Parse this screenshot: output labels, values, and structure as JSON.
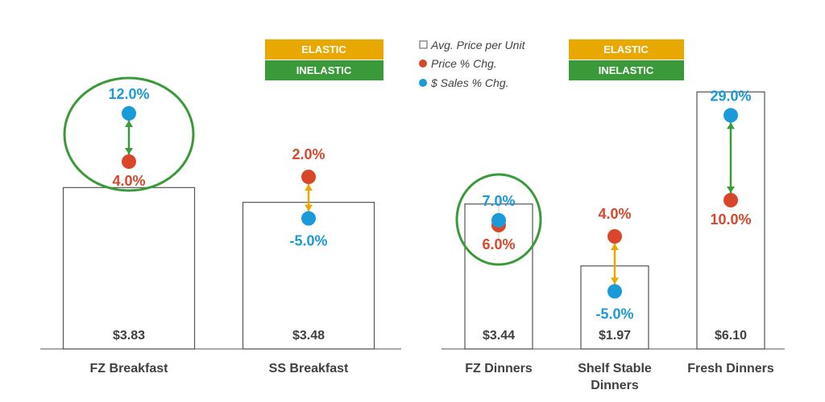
{
  "colors": {
    "price": "#d9472b",
    "sales": "#1a9ad6",
    "elastic": "#e8a800",
    "inelastic": "#3a9a3a",
    "bar_stroke": "#555555",
    "text": "#404040"
  },
  "legend": {
    "avg_price": "Avg. Price per Unit",
    "price_chg": "Price % Chg.",
    "sales_chg": "$ Sales % Chg."
  },
  "badges": {
    "elastic": "ELASTIC",
    "inelastic": "INELASTIC"
  },
  "chart_data": [
    {
      "type": "bar",
      "categories": [
        "FZ Breakfast",
        "SS Breakfast"
      ],
      "values": [
        3.83,
        3.48
      ],
      "price_labels": [
        "$3.83",
        "$3.48"
      ],
      "series": [
        {
          "name": "Price % Chg.",
          "values": [
            4.0,
            2.0
          ],
          "labels": [
            "4.0%",
            "2.0%"
          ]
        },
        {
          "name": "$ Sales % Chg.",
          "values": [
            12.0,
            -5.0
          ],
          "labels": [
            "12.0%",
            "-5.0%"
          ]
        }
      ],
      "elasticity": [
        "inelastic",
        "elastic"
      ],
      "circled": [
        true,
        false
      ]
    },
    {
      "type": "bar",
      "categories": [
        "FZ Dinners",
        "Shelf Stable Dinners",
        "Fresh Dinners"
      ],
      "values": [
        3.44,
        1.97,
        6.1
      ],
      "price_labels": [
        "$3.44",
        "$1.97",
        "$6.10"
      ],
      "series": [
        {
          "name": "Price % Chg.",
          "values": [
            6.0,
            4.0,
            10.0
          ],
          "labels": [
            "6.0%",
            "4.0%",
            "10.0%"
          ]
        },
        {
          "name": "$ Sales % Chg.",
          "values": [
            7.0,
            -5.0,
            29.0
          ],
          "labels": [
            "7.0%",
            "-5.0%",
            "29.0%"
          ]
        }
      ],
      "elasticity": [
        "inelastic",
        "elastic",
        "inelastic"
      ],
      "circled": [
        true,
        false,
        false
      ]
    }
  ]
}
